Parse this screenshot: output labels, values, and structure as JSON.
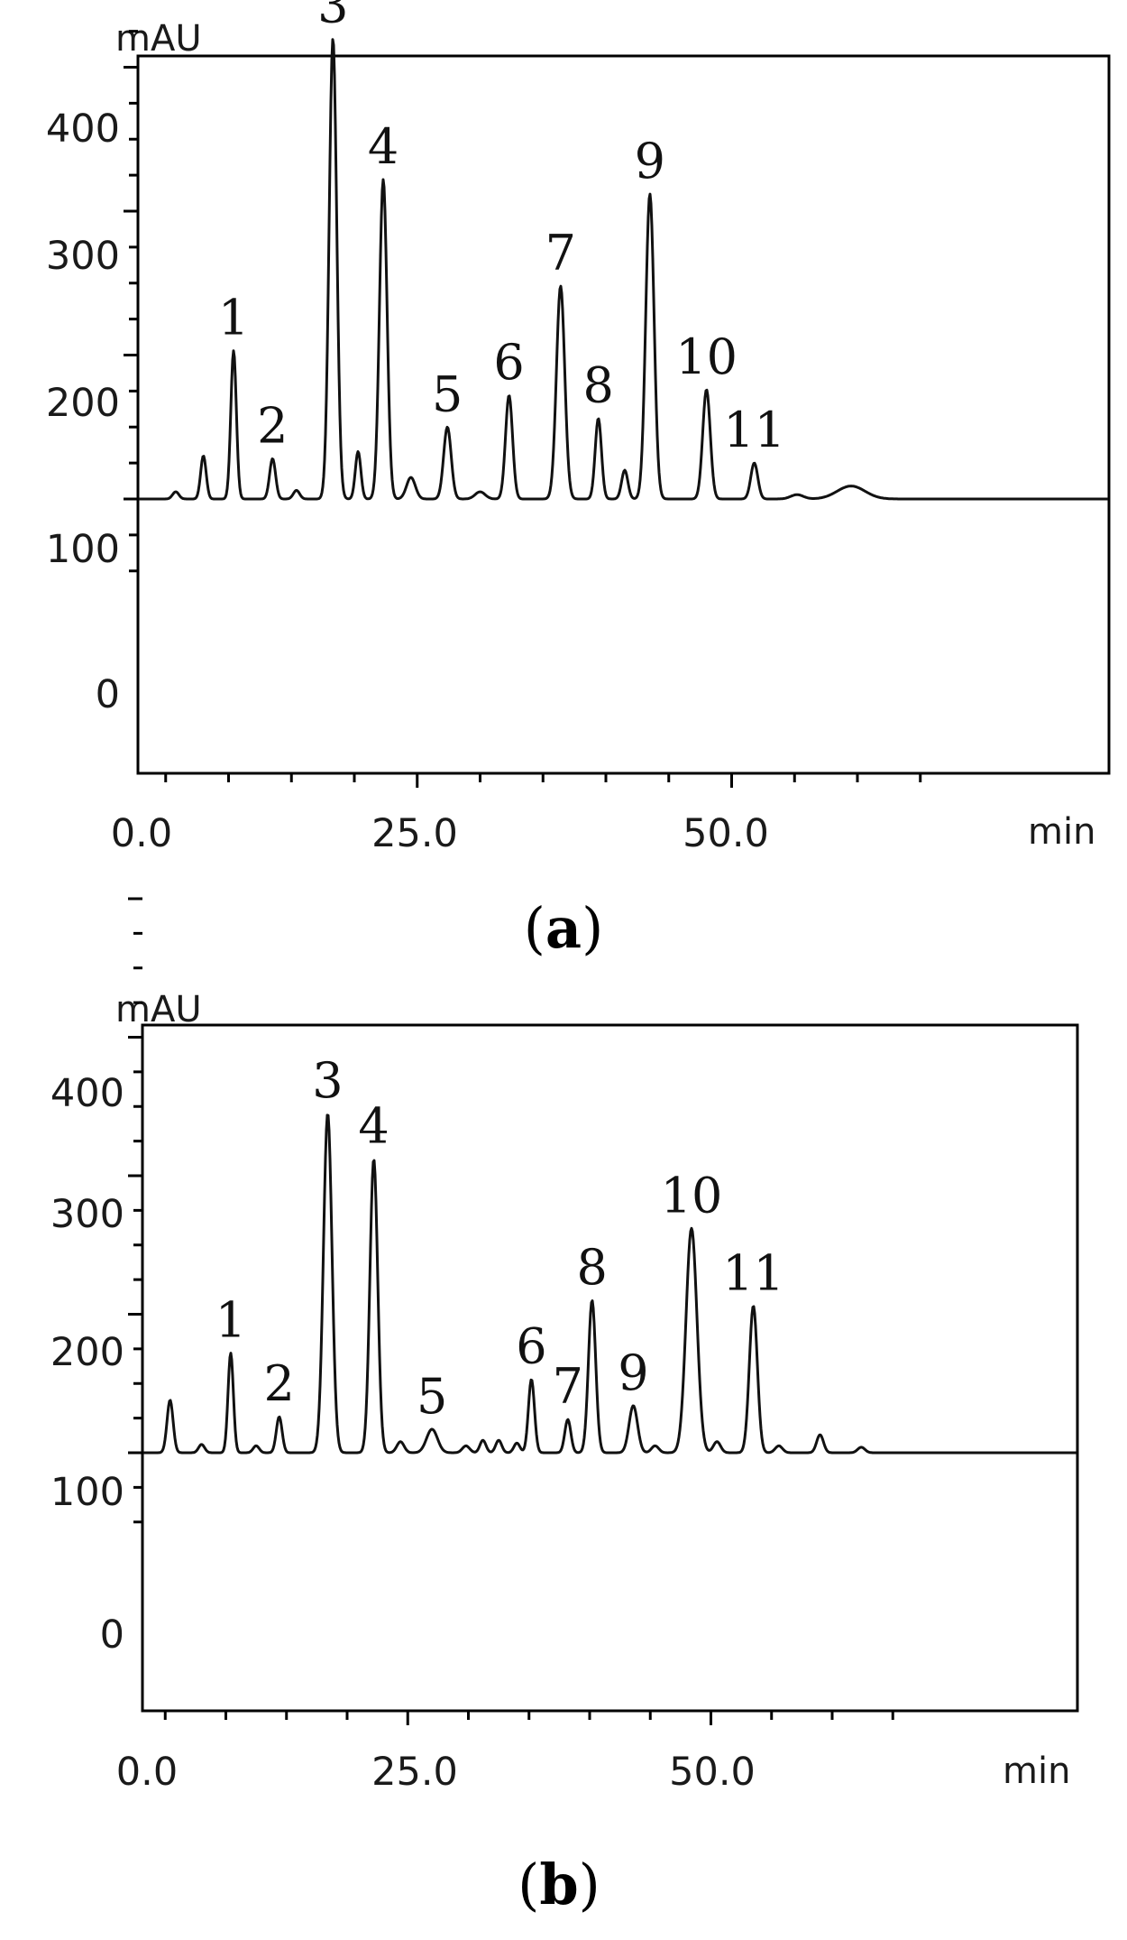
{
  "chart_data": [
    {
      "type": "line",
      "panel_label": "a",
      "ylabel": "mAU",
      "xlabel": "min",
      "xlim": [
        -1.5,
        66.5
      ],
      "ylim": [
        -60,
        450
      ],
      "xticks_major": [
        0,
        25,
        50
      ],
      "xtick_labels": [
        "0.0",
        "25.0",
        "50.0"
      ],
      "yticks_major": [
        0,
        100,
        200,
        300,
        400
      ],
      "ytick_labels": [
        "0",
        "100",
        "200",
        "300",
        "400"
      ],
      "grid": false,
      "series": [
        {
          "peaks": [
            {
              "x": 1.4,
              "h": 55,
              "w": 0.18,
              "label": ""
            },
            {
              "x": 5.8,
              "h": 5,
              "w": 0.25,
              "label": ""
            },
            {
              "x": 8.0,
              "h": 30,
              "w": 0.22,
              "label": ""
            },
            {
              "x": 10.4,
              "h": 103,
              "w": 0.22,
              "label": "1"
            },
            {
              "x": 13.5,
              "h": 28,
              "w": 0.24,
              "label": "2"
            },
            {
              "x": 15.4,
              "h": 6,
              "w": 0.25,
              "label": ""
            },
            {
              "x": 18.3,
              "h": 320,
              "w": 0.3,
              "label": "3"
            },
            {
              "x": 20.3,
              "h": 33,
              "w": 0.22,
              "label": ""
            },
            {
              "x": 22.3,
              "h": 222,
              "w": 0.3,
              "label": "4"
            },
            {
              "x": 24.5,
              "h": 15,
              "w": 0.35,
              "label": ""
            },
            {
              "x": 27.4,
              "h": 50,
              "w": 0.3,
              "label": "5"
            },
            {
              "x": 30.0,
              "h": 5,
              "w": 0.4,
              "label": ""
            },
            {
              "x": 32.3,
              "h": 72,
              "w": 0.28,
              "label": "6"
            },
            {
              "x": 36.4,
              "h": 148,
              "w": 0.33,
              "label": "7"
            },
            {
              "x": 39.4,
              "h": 56,
              "w": 0.25,
              "label": "8"
            },
            {
              "x": 41.5,
              "h": 20,
              "w": 0.25,
              "label": ""
            },
            {
              "x": 43.5,
              "h": 212,
              "w": 0.33,
              "label": "9"
            },
            {
              "x": 48.0,
              "h": 76,
              "w": 0.3,
              "label": "10"
            },
            {
              "x": 51.8,
              "h": 25,
              "w": 0.28,
              "label": "11"
            },
            {
              "x": 55.2,
              "h": 3,
              "w": 0.5,
              "label": ""
            },
            {
              "x": 59.5,
              "h": 9,
              "w": 1.1,
              "label": ""
            }
          ]
        }
      ]
    },
    {
      "type": "line",
      "panel_label": "b",
      "ylabel": "mAU",
      "xlabel": "min",
      "xlim": [
        -1.5,
        66.5
      ],
      "ylim": [
        -60,
        450
      ],
      "xticks_major": [
        0,
        25,
        50
      ],
      "xtick_labels": [
        "0.0",
        "25.0",
        "50.0"
      ],
      "yticks_major": [
        0,
        100,
        200,
        300,
        400
      ],
      "ytick_labels": [
        "0",
        "100",
        "200",
        "300",
        "400"
      ],
      "grid": false,
      "series": [
        {
          "peaks": [
            {
              "x": 1.3,
              "h": 28,
              "w": 0.18,
              "label": ""
            },
            {
              "x": 5.4,
              "h": 38,
              "w": 0.25,
              "label": ""
            },
            {
              "x": 8.0,
              "h": 6,
              "w": 0.25,
              "label": ""
            },
            {
              "x": 10.4,
              "h": 72,
              "w": 0.22,
              "label": "1"
            },
            {
              "x": 12.5,
              "h": 5,
              "w": 0.25,
              "label": ""
            },
            {
              "x": 14.4,
              "h": 26,
              "w": 0.24,
              "label": "2"
            },
            {
              "x": 18.4,
              "h": 245,
              "w": 0.35,
              "label": "3"
            },
            {
              "x": 22.2,
              "h": 212,
              "w": 0.32,
              "label": "4"
            },
            {
              "x": 24.4,
              "h": 8,
              "w": 0.3,
              "label": ""
            },
            {
              "x": 27.0,
              "h": 17,
              "w": 0.45,
              "label": "5"
            },
            {
              "x": 29.8,
              "h": 5,
              "w": 0.3,
              "label": ""
            },
            {
              "x": 31.2,
              "h": 9,
              "w": 0.25,
              "label": ""
            },
            {
              "x": 32.5,
              "h": 9,
              "w": 0.25,
              "label": ""
            },
            {
              "x": 34.0,
              "h": 7,
              "w": 0.25,
              "label": ""
            },
            {
              "x": 35.2,
              "h": 53,
              "w": 0.25,
              "label": "6"
            },
            {
              "x": 38.2,
              "h": 24,
              "w": 0.25,
              "label": "7"
            },
            {
              "x": 40.2,
              "h": 110,
              "w": 0.3,
              "label": "8"
            },
            {
              "x": 43.6,
              "h": 34,
              "w": 0.35,
              "label": "9"
            },
            {
              "x": 45.4,
              "h": 5,
              "w": 0.3,
              "label": ""
            },
            {
              "x": 48.4,
              "h": 162,
              "w": 0.45,
              "label": "10"
            },
            {
              "x": 50.5,
              "h": 8,
              "w": 0.3,
              "label": ""
            },
            {
              "x": 53.5,
              "h": 106,
              "w": 0.33,
              "label": "11"
            },
            {
              "x": 55.6,
              "h": 5,
              "w": 0.3,
              "label": ""
            },
            {
              "x": 59.0,
              "h": 13,
              "w": 0.28,
              "label": ""
            },
            {
              "x": 62.4,
              "h": 4,
              "w": 0.3,
              "label": ""
            }
          ]
        }
      ]
    }
  ]
}
